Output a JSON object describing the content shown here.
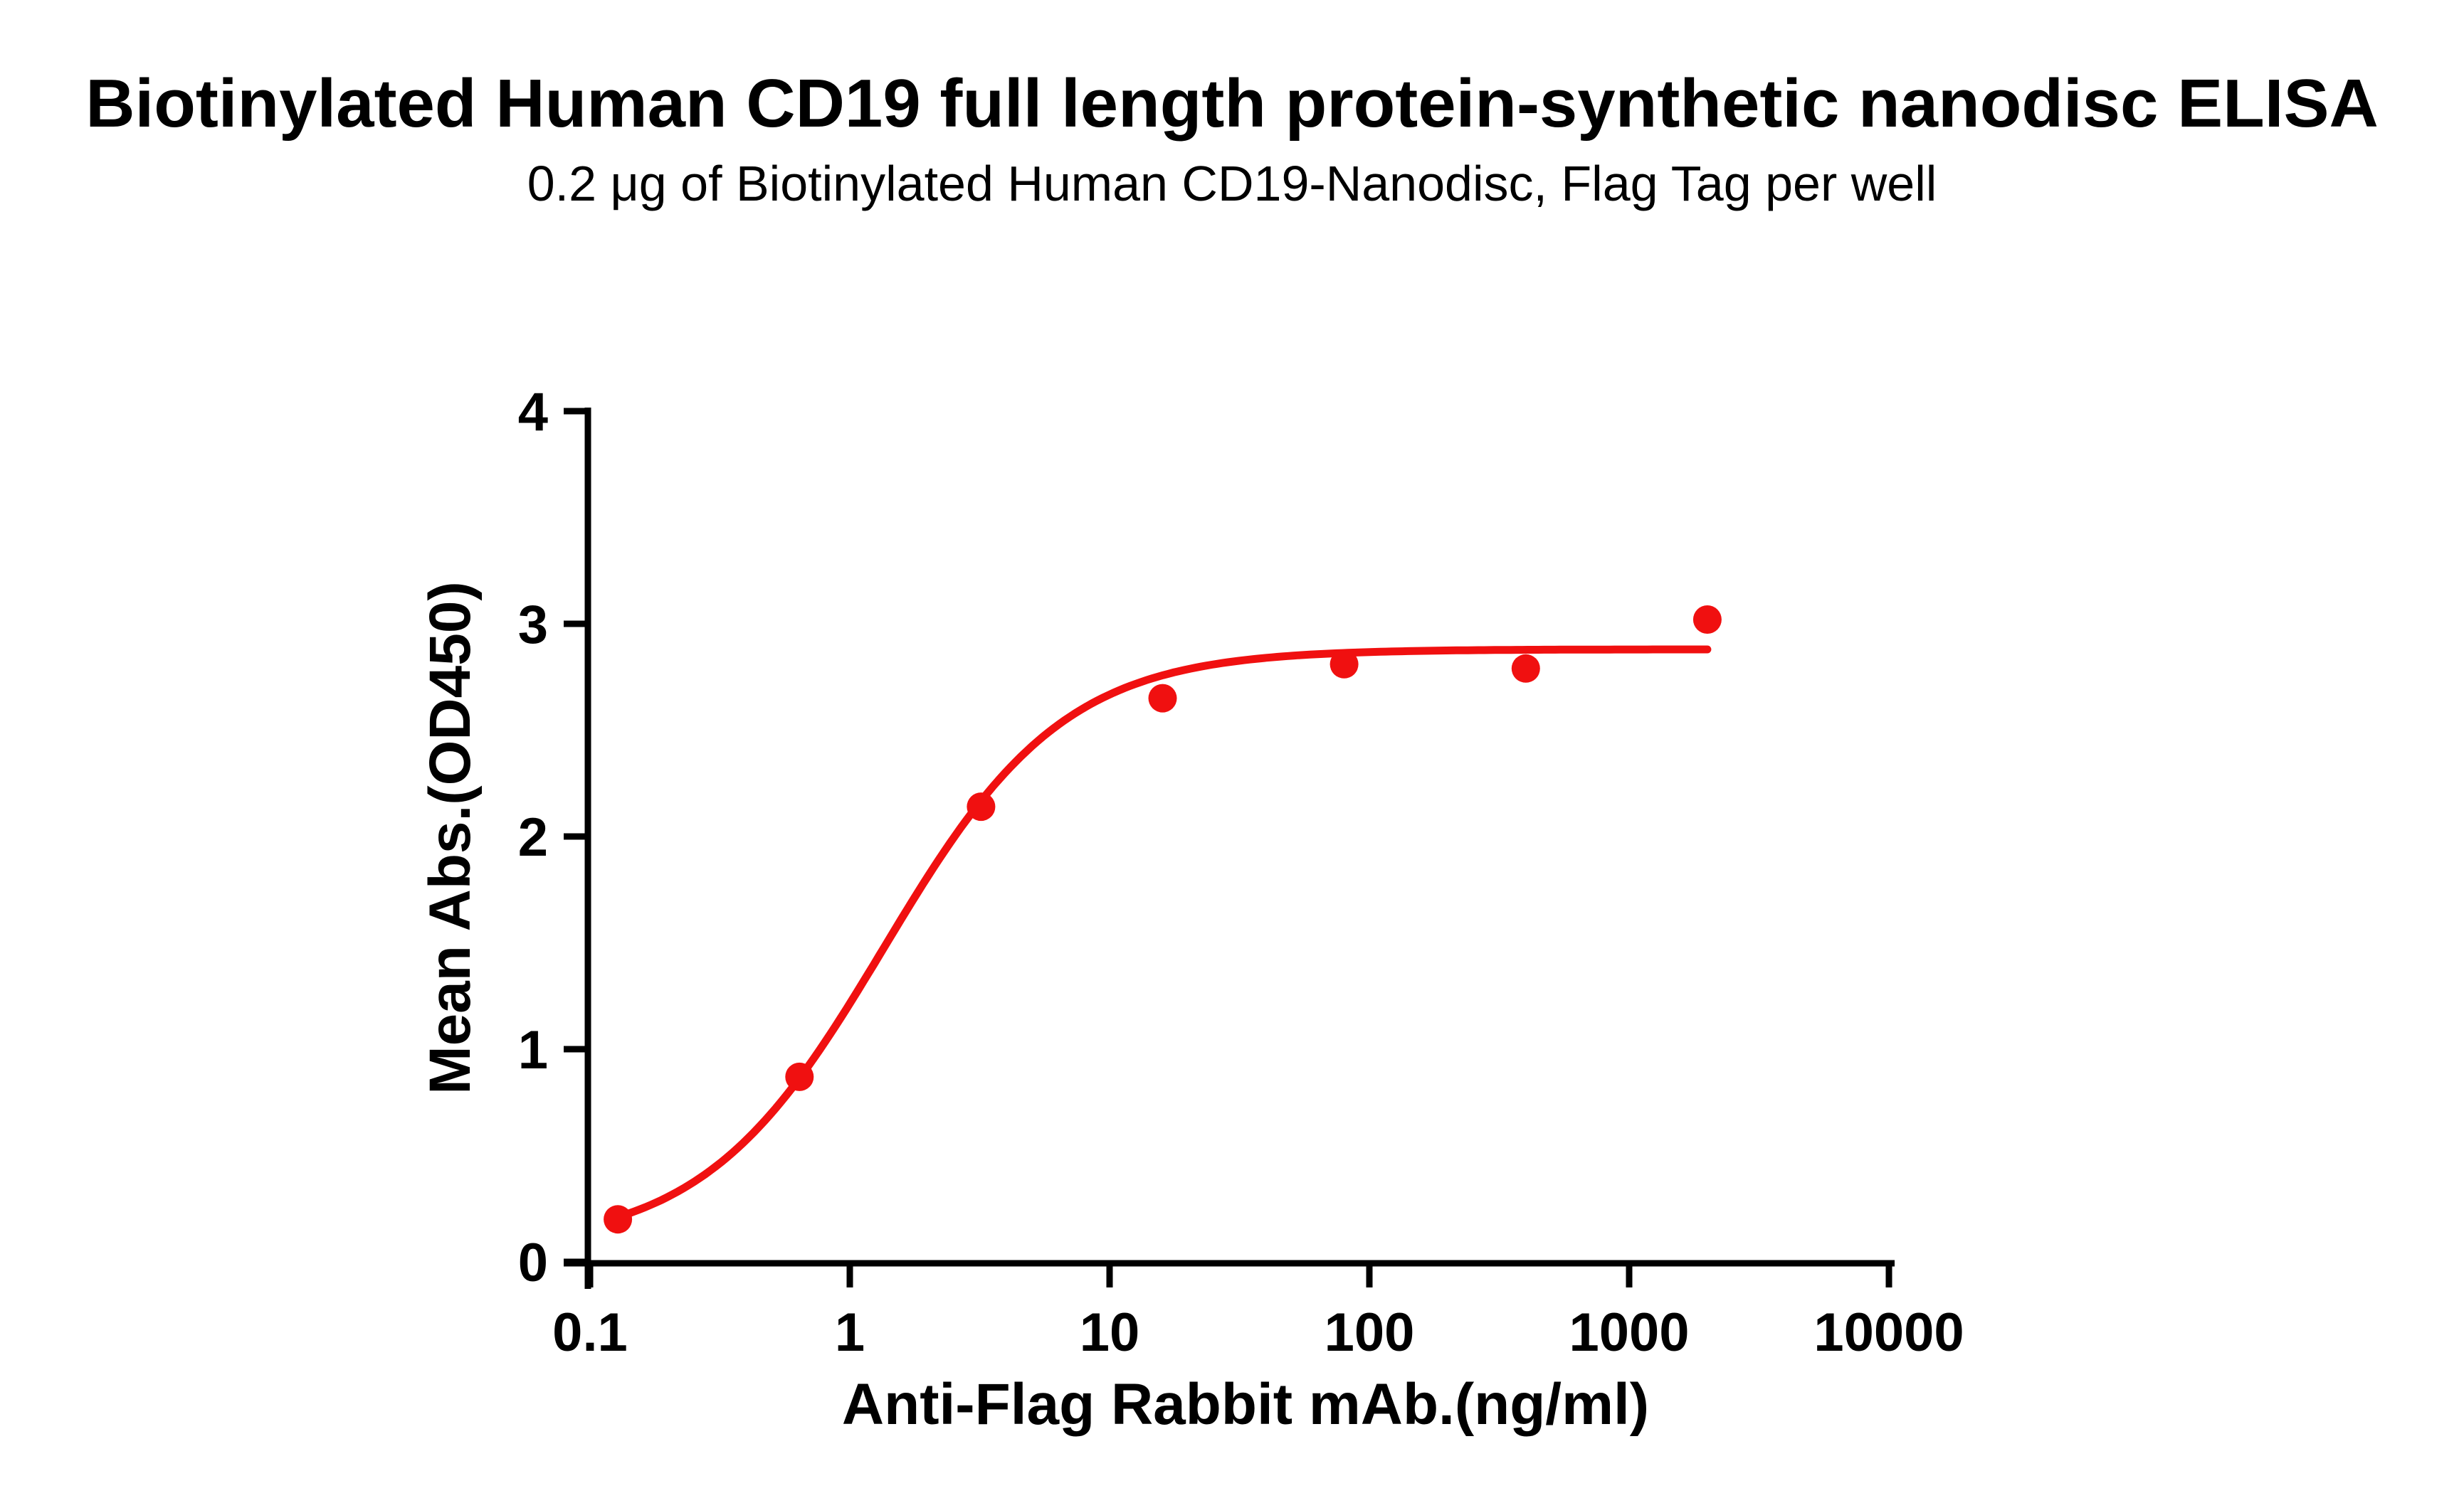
{
  "chart_data": {
    "type": "scatter",
    "title": "Biotinylated Human CD19 full length protein-synthetic nanodisc ELISA",
    "subtitle": "0.2 μg of Biotinylated Human CD19-Nanodisc, Flag Tag per well",
    "xlabel": "Anti-Flag Rabbit mAb.(ng/ml)",
    "ylabel": "Mean Abs.(OD450)",
    "x_scale": "log10",
    "xlim": [
      0.1,
      10000
    ],
    "ylim": [
      0,
      4
    ],
    "x_tick_values": [
      0.1,
      1,
      10,
      100,
      1000,
      10000
    ],
    "x_tick_labels": [
      "0.1",
      "1",
      "10",
      "100",
      "1000",
      "10000"
    ],
    "y_tick_values": [
      0,
      1,
      2,
      3,
      4
    ],
    "y_tick_labels": [
      "0",
      "1",
      "2",
      "3",
      "4"
    ],
    "grid": false,
    "legend": null,
    "series": [
      {
        "name": "Biotinylated Human CD19-Nanodisc, Flag Tag",
        "color": "#F01010",
        "marker": "circle",
        "points": [
          {
            "x": 0.128,
            "y": 0.2
          },
          {
            "x": 0.64,
            "y": 0.87
          },
          {
            "x": 3.2,
            "y": 2.14
          },
          {
            "x": 16,
            "y": 2.65
          },
          {
            "x": 80,
            "y": 2.81
          },
          {
            "x": 400,
            "y": 2.79
          },
          {
            "x": 2000,
            "y": 3.02
          }
        ],
        "fit_curve": {
          "model": "4PL",
          "bottom": 0.07,
          "top": 2.88,
          "ec50": 1.35,
          "hill": 1.25,
          "x_start": 0.128,
          "x_end": 2000
        }
      }
    ],
    "axis_color": "#000000"
  }
}
